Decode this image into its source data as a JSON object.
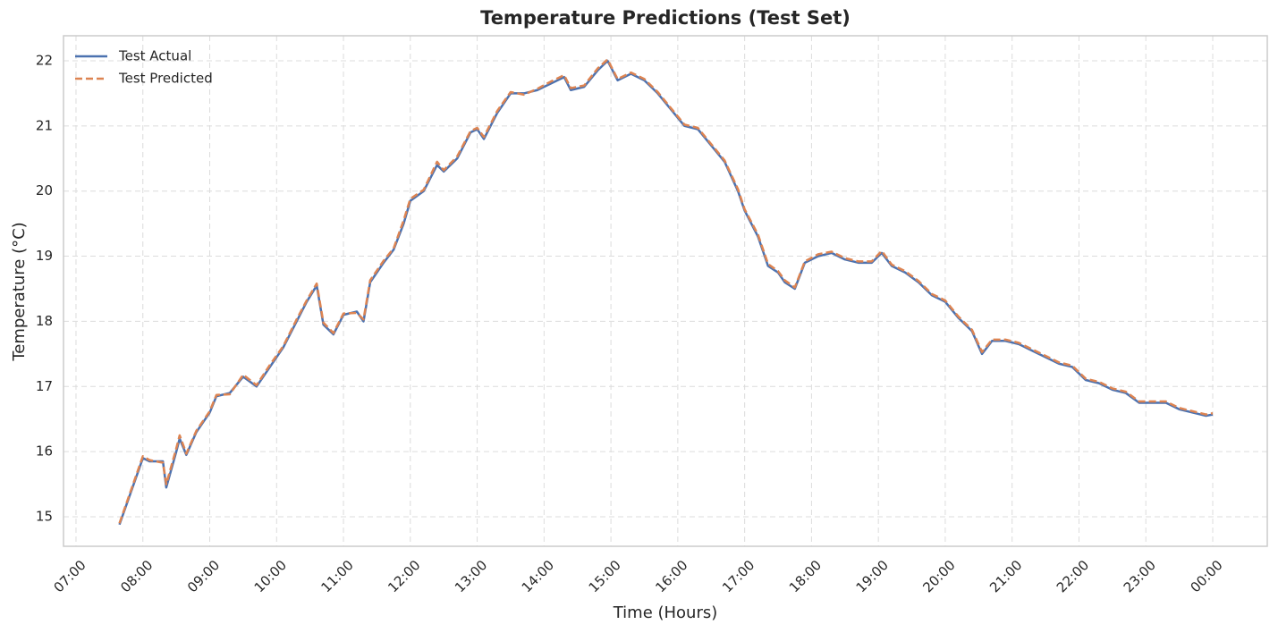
{
  "chart_data": {
    "type": "line",
    "title": "Temperature Predictions (Test Set)",
    "xlabel": "Time (Hours)",
    "ylabel": "Temperature (°C)",
    "x": [
      7.65,
      8.0,
      8.1,
      8.3,
      8.35,
      8.5,
      8.55,
      8.65,
      8.8,
      9.0,
      9.1,
      9.3,
      9.5,
      9.7,
      9.9,
      10.1,
      10.3,
      10.45,
      10.6,
      10.7,
      10.85,
      11.0,
      11.2,
      11.3,
      11.4,
      11.6,
      11.75,
      11.9,
      12.0,
      12.2,
      12.4,
      12.5,
      12.7,
      12.9,
      13.0,
      13.1,
      13.3,
      13.5,
      13.7,
      13.9,
      14.1,
      14.3,
      14.4,
      14.6,
      14.8,
      14.95,
      15.1,
      15.3,
      15.5,
      15.7,
      15.9,
      16.1,
      16.3,
      16.5,
      16.7,
      16.9,
      17.0,
      17.2,
      17.35,
      17.5,
      17.6,
      17.75,
      17.9,
      18.1,
      18.3,
      18.5,
      18.7,
      18.9,
      19.05,
      19.2,
      19.4,
      19.6,
      19.8,
      20.0,
      20.2,
      20.4,
      20.55,
      20.7,
      20.9,
      21.1,
      21.3,
      21.5,
      21.7,
      21.9,
      22.1,
      22.3,
      22.5,
      22.7,
      22.9,
      23.1,
      23.3,
      23.5,
      23.7,
      23.9,
      24.0
    ],
    "series": [
      {
        "name": "Test Actual",
        "color": "#4c72b0",
        "dash": false,
        "values": [
          14.88,
          15.9,
          15.85,
          15.85,
          15.45,
          16.0,
          16.2,
          15.95,
          16.3,
          16.6,
          16.85,
          16.9,
          17.15,
          17.0,
          17.3,
          17.6,
          18.0,
          18.3,
          18.55,
          17.95,
          17.8,
          18.1,
          18.15,
          18.0,
          18.6,
          18.9,
          19.1,
          19.5,
          19.85,
          20.0,
          20.4,
          20.3,
          20.5,
          20.9,
          20.95,
          20.8,
          21.2,
          21.5,
          21.5,
          21.55,
          21.65,
          21.75,
          21.55,
          21.6,
          21.85,
          22.0,
          21.7,
          21.8,
          21.7,
          21.5,
          21.25,
          21.0,
          20.95,
          20.7,
          20.45,
          20.0,
          19.7,
          19.3,
          18.85,
          18.75,
          18.6,
          18.5,
          18.9,
          19.0,
          19.05,
          18.95,
          18.9,
          18.9,
          19.05,
          18.85,
          18.75,
          18.6,
          18.4,
          18.3,
          18.05,
          17.85,
          17.5,
          17.7,
          17.7,
          17.65,
          17.55,
          17.45,
          17.35,
          17.3,
          17.1,
          17.05,
          16.95,
          16.9,
          16.75,
          16.75,
          16.75,
          16.65,
          16.6,
          16.55,
          16.57
        ]
      },
      {
        "name": "Test Predicted",
        "color": "#dd8452",
        "dash": true,
        "values": [
          14.9,
          15.93,
          15.87,
          15.83,
          15.5,
          16.05,
          16.25,
          15.97,
          16.32,
          16.62,
          16.87,
          16.88,
          17.18,
          17.02,
          17.33,
          17.62,
          18.03,
          18.32,
          18.58,
          17.98,
          17.82,
          18.12,
          18.13,
          18.03,
          18.63,
          18.93,
          19.12,
          19.55,
          19.88,
          20.02,
          20.45,
          20.32,
          20.53,
          20.92,
          20.97,
          20.83,
          21.23,
          21.52,
          21.48,
          21.57,
          21.68,
          21.78,
          21.58,
          21.62,
          21.88,
          22.02,
          21.72,
          21.82,
          21.72,
          21.52,
          21.27,
          21.02,
          20.97,
          20.72,
          20.47,
          20.03,
          19.72,
          19.33,
          18.88,
          18.77,
          18.63,
          18.52,
          18.92,
          19.03,
          19.07,
          18.97,
          18.92,
          18.92,
          19.08,
          18.87,
          18.77,
          18.62,
          18.42,
          18.32,
          18.07,
          17.87,
          17.53,
          17.72,
          17.72,
          17.67,
          17.57,
          17.47,
          17.37,
          17.32,
          17.12,
          17.07,
          16.97,
          16.92,
          16.77,
          16.77,
          16.77,
          16.67,
          16.62,
          16.57,
          16.59
        ]
      }
    ],
    "xlim": [
      6.813,
      24.816
    ],
    "ylim": [
      14.547,
      22.384
    ],
    "xticks": [
      {
        "value": 7,
        "label": "07:00"
      },
      {
        "value": 8,
        "label": "08:00"
      },
      {
        "value": 9,
        "label": "09:00"
      },
      {
        "value": 10,
        "label": "10:00"
      },
      {
        "value": 11,
        "label": "11:00"
      },
      {
        "value": 12,
        "label": "12:00"
      },
      {
        "value": 13,
        "label": "13:00"
      },
      {
        "value": 14,
        "label": "14:00"
      },
      {
        "value": 15,
        "label": "15:00"
      },
      {
        "value": 16,
        "label": "16:00"
      },
      {
        "value": 17,
        "label": "17:00"
      },
      {
        "value": 18,
        "label": "18:00"
      },
      {
        "value": 19,
        "label": "19:00"
      },
      {
        "value": 20,
        "label": "20:00"
      },
      {
        "value": 21,
        "label": "21:00"
      },
      {
        "value": 22,
        "label": "22:00"
      },
      {
        "value": 23,
        "label": "23:00"
      },
      {
        "value": 24,
        "label": "00:00"
      }
    ],
    "yticks": [
      15,
      16,
      17,
      18,
      19,
      20,
      21,
      22
    ],
    "grid": true,
    "legend": "upper left"
  }
}
